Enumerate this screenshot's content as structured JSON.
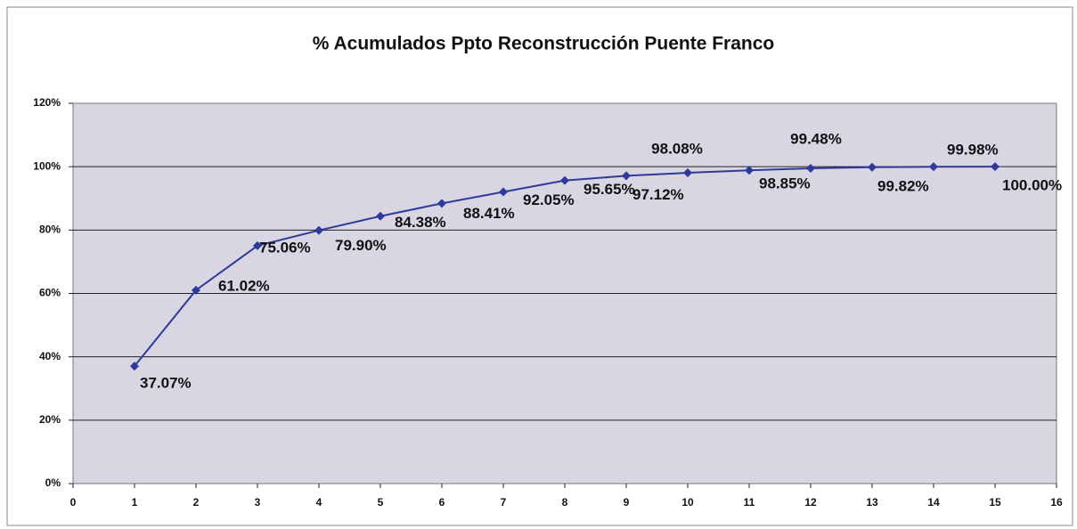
{
  "chart_data": {
    "type": "line",
    "title": "% Acumulados Ppto Reconstrucción Puente Franco",
    "x": [
      1,
      2,
      3,
      4,
      5,
      6,
      7,
      8,
      9,
      10,
      11,
      12,
      13,
      14,
      15
    ],
    "series": [
      {
        "name": "% Acumulado",
        "color": "#2e3a9a",
        "values": [
          37.07,
          61.02,
          75.06,
          79.9,
          84.38,
          88.41,
          92.05,
          95.65,
          97.12,
          98.08,
          98.85,
          99.48,
          99.82,
          99.98,
          100.0
        ],
        "value_labels": [
          "37.07%",
          "61.02%",
          "75.06%",
          "79.90%",
          "84.38%",
          "88.41%",
          "92.05%",
          "95.65%",
          "97.12%",
          "98.08%",
          "98.85%",
          "99.48%",
          "99.82%",
          "99.98%",
          "100.00%"
        ]
      }
    ],
    "xlim": [
      0,
      16
    ],
    "xticks": [
      0,
      1,
      2,
      3,
      4,
      5,
      6,
      7,
      8,
      9,
      10,
      11,
      12,
      13,
      14,
      15,
      16
    ],
    "ylim": [
      0,
      120
    ],
    "yticks": [
      {
        "value": 0,
        "label": "0%"
      },
      {
        "value": 20,
        "label": "20%"
      },
      {
        "value": 40,
        "label": "40%"
      },
      {
        "value": 60,
        "label": "60%"
      },
      {
        "value": 80,
        "label": "80%"
      },
      {
        "value": 100,
        "label": "100%"
      },
      {
        "value": 120,
        "label": "120%"
      }
    ],
    "grid": true
  }
}
